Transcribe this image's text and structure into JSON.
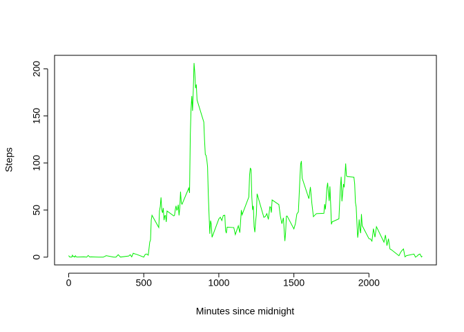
{
  "chart_data": {
    "type": "line",
    "x_label": "Minutes since midnight",
    "y_label": "Steps",
    "x": [
      0,
      5,
      10,
      15,
      20,
      25,
      30,
      35,
      40,
      45,
      50,
      55,
      100,
      110,
      120,
      130,
      140,
      150,
      200,
      215,
      230,
      250,
      300,
      315,
      330,
      345,
      400,
      410,
      420,
      430,
      440,
      450,
      500,
      510,
      520,
      530,
      540,
      545,
      550,
      555,
      600,
      605,
      610,
      615,
      620,
      625,
      630,
      635,
      640,
      645,
      650,
      655,
      700,
      705,
      710,
      715,
      720,
      725,
      730,
      735,
      740,
      745,
      750,
      755,
      800,
      805,
      810,
      815,
      820,
      825,
      830,
      835,
      840,
      845,
      850,
      855,
      900,
      905,
      910,
      915,
      920,
      925,
      930,
      935,
      940,
      945,
      950,
      955,
      1000,
      1010,
      1020,
      1030,
      1040,
      1045,
      1050,
      1055,
      1100,
      1110,
      1120,
      1130,
      1140,
      1150,
      1155,
      1200,
      1205,
      1210,
      1215,
      1220,
      1225,
      1230,
      1235,
      1240,
      1245,
      1250,
      1255,
      1300,
      1310,
      1320,
      1330,
      1340,
      1345,
      1350,
      1355,
      1400,
      1410,
      1420,
      1430,
      1440,
      1445,
      1450,
      1455,
      1500,
      1510,
      1520,
      1530,
      1535,
      1540,
      1545,
      1550,
      1555,
      1600,
      1610,
      1620,
      1630,
      1640,
      1650,
      1700,
      1705,
      1710,
      1715,
      1720,
      1725,
      1730,
      1735,
      1740,
      1745,
      1750,
      1755,
      1800,
      1805,
      1810,
      1815,
      1820,
      1825,
      1830,
      1835,
      1840,
      1845,
      1850,
      1855,
      1900,
      1905,
      1910,
      1915,
      1920,
      1925,
      1930,
      1935,
      1940,
      1945,
      1950,
      1955,
      2000,
      2010,
      2020,
      2030,
      2040,
      2050,
      2100,
      2110,
      2120,
      2130,
      2140,
      2150,
      2200,
      2210,
      2220,
      2230,
      2240,
      2250,
      2300,
      2310,
      2320,
      2330,
      2340,
      2350,
      2355
    ],
    "series": [
      {
        "color": "#00ee00",
        "values": [
          1.7,
          0.34,
          0.13,
          0.15,
          0.08,
          2.1,
          0.53,
          0.87,
          0,
          1.47,
          0.3,
          0.13,
          0.32,
          0.17,
          0,
          1.8,
          0.17,
          0.26,
          0,
          0.02,
          0,
          1.55,
          0,
          0,
          2.6,
          0.08,
          1.19,
          2.57,
          0.34,
          4.1,
          3.5,
          3.1,
          0,
          3.0,
          3.3,
          2.1,
          16.0,
          18.3,
          39.5,
          44.5,
          31.5,
          49.3,
          53.8,
          63.5,
          50.0,
          47.1,
          52.2,
          39.3,
          44.0,
          44.2,
          37.4,
          49.0,
          43.8,
          44.4,
          50.5,
          54.5,
          49.9,
          50.9,
          55.7,
          44.3,
          52.3,
          69.5,
          57.8,
          56.2,
          73.4,
          68.2,
          129.4,
          157.5,
          171.2,
          155.4,
          177.3,
          206.2,
          195.9,
          179.6,
          183.4,
          167.0,
          143.5,
          124.0,
          109.1,
          108.1,
          103.7,
          96.0,
          66.2,
          45.2,
          24.8,
          38.8,
          35.0,
          21.1,
          40.6,
          42.4,
          38.9,
          44.3,
          44.5,
          28.5,
          25.5,
          31.9,
          31.4,
          24.0,
          28.7,
          33.3,
          26.0,
          50.0,
          45,
          63.9,
          87.6,
          94.8,
          92.8,
          63.4,
          50.2,
          54.5,
          32.4,
          26.5,
          37.7,
          45.1,
          67.3,
          42.3,
          43.2,
          46.2,
          40.1,
          53.5,
          53.2,
          47.3,
          60.8,
          55.8,
          43.6,
          35.5,
          41.8,
          17.1,
          26.1,
          43.5,
          43.7,
          30.0,
          35.5,
          45.9,
          48.1,
          65.3,
          82.9,
          98.7,
          102.1,
          84.0,
          62.1,
          74.5,
          56.9,
          43.0,
          44.7,
          46.2,
          46.6,
          56.3,
          50.7,
          61.2,
          73.4,
          79.0,
          68.9,
          59.7,
          75.1,
          56.5,
          34.8,
          37.5,
          40.7,
          58.0,
          74.7,
          85.3,
          59.3,
          67.8,
          77.7,
          74.2,
          85.3,
          99.5,
          86.6,
          85.6,
          84.9,
          77.8,
          58.0,
          53.4,
          36.3,
          20.7,
          27.4,
          40.0,
          30.2,
          25.5,
          45.7,
          33.5,
          19.6,
          19.3,
          17.0,
          30.3,
          21.2,
          32.3,
          15.9,
          23.5,
          12.2,
          19.6,
          8.7,
          7.8,
          1.5,
          4.8,
          7.1,
          8.7,
          0.3,
          1.6,
          3.3,
          0,
          1.0,
          2.6,
          3.3,
          0.2,
          1.1
        ]
      }
    ],
    "xlim": [
      -94.2,
      2449.2
    ],
    "ylim": [
      -8.25,
      214.4
    ],
    "xticks": [
      0,
      500,
      1000,
      1500,
      2000
    ],
    "yticks": [
      0,
      50,
      100,
      150,
      200
    ]
  }
}
